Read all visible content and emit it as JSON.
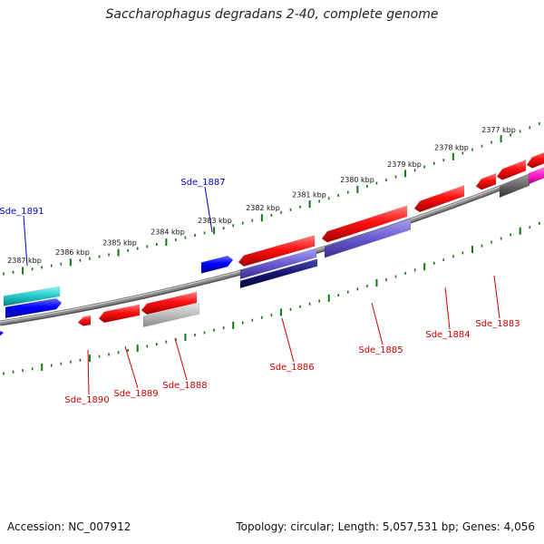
{
  "title": "Saccharophagus degradans 2-40, complete genome",
  "footer": {
    "accession": "Accession: NC_007912",
    "info": "Topology: circular; Length: 5,057,531 bp; Genes: 4,056"
  },
  "colors": {
    "forward_gene": "#0000ff",
    "reverse_gene": "#ff0000",
    "tick": "#117711",
    "backbone": "#888888",
    "forward_label": "#0000cc",
    "reverse_label": "#cc0000"
  },
  "ruler_labels": [
    "2387 kbp",
    "2386 kbp",
    "2385 kbp",
    "2384 kbp",
    "2383 kbp",
    "2382 kbp",
    "2381 kbp",
    "2380 kbp",
    "2379 kbp",
    "2378 kbp",
    "2377 kbp"
  ],
  "gene_labels": [
    {
      "text": "Sde_1891",
      "strand": "forward"
    },
    {
      "text": "Sde_1887",
      "strand": "forward"
    },
    {
      "text": "Sde_1890",
      "strand": "reverse"
    },
    {
      "text": "Sde_1889",
      "strand": "reverse"
    },
    {
      "text": "Sde_1888",
      "strand": "reverse"
    },
    {
      "text": "Sde_1886",
      "strand": "reverse"
    },
    {
      "text": "Sde_1885",
      "strand": "reverse"
    },
    {
      "text": "Sde_1884",
      "strand": "reverse"
    },
    {
      "text": "Sde_1883",
      "strand": "reverse"
    }
  ]
}
